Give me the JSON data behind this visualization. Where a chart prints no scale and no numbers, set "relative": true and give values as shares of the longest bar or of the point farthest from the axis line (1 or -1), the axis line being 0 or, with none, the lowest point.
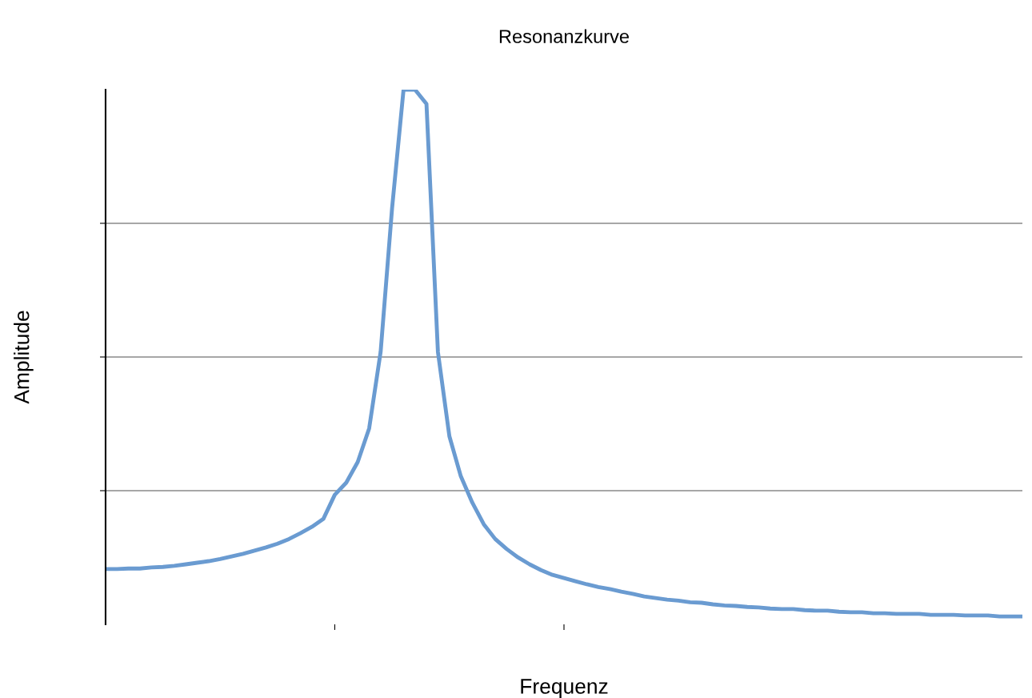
{
  "chart_data": {
    "type": "line",
    "title": "Resonanzkurve",
    "xlabel": "Frequenz",
    "ylabel": "Amplitude",
    "relative": true,
    "grid": "y",
    "marker": "none",
    "line_style": "solid",
    "categories": [
      null,
      null,
      null,
      null,
      null,
      null,
      null,
      null,
      null,
      null,
      null,
      null,
      null,
      null,
      null,
      null,
      null,
      null,
      null,
      null,
      null,
      null,
      null,
      null,
      null,
      null,
      null,
      null,
      null,
      null,
      null,
      null,
      null,
      null,
      null,
      null,
      null,
      null,
      null,
      null,
      null,
      null,
      null,
      null,
      null,
      null,
      null,
      null,
      null,
      null,
      null,
      null,
      null,
      null,
      null,
      null,
      null,
      null,
      null,
      null,
      null,
      null,
      null,
      null,
      null,
      null,
      null,
      null,
      null,
      null,
      null,
      null,
      null,
      null,
      null,
      null,
      null,
      null,
      null,
      null,
      null
    ],
    "series": [
      {
        "color": "#6a9bd1",
        "values": [
          0.09,
          0.09,
          0.091,
          0.091,
          0.093,
          0.094,
          0.096,
          0.099,
          0.102,
          0.105,
          0.109,
          0.114,
          0.119,
          0.125,
          0.131,
          0.138,
          0.147,
          0.158,
          0.17,
          0.185,
          0.231,
          0.254,
          0.293,
          0.357,
          0.502,
          0.775,
          1,
          1,
          0.973,
          0.502,
          0.342,
          0.266,
          0.216,
          0.175,
          0.147,
          0.128,
          0.112,
          0.099,
          0.088,
          0.079,
          0.073,
          0.067,
          0.061,
          0.056,
          0.052,
          0.047,
          0.043,
          0.038,
          0.035,
          0.032,
          0.03,
          0.027,
          0.026,
          0.023,
          0.021,
          0.02,
          0.018,
          0.017,
          0.015,
          0.014,
          0.014,
          0.012,
          0.011,
          0.011,
          0.009,
          0.008,
          0.008,
          0.006,
          0.006,
          0.005,
          0.005,
          0.005,
          0.003,
          0.003,
          0.003,
          0.002,
          0.002,
          0.002,
          0,
          0,
          0
        ]
      }
    ]
  }
}
